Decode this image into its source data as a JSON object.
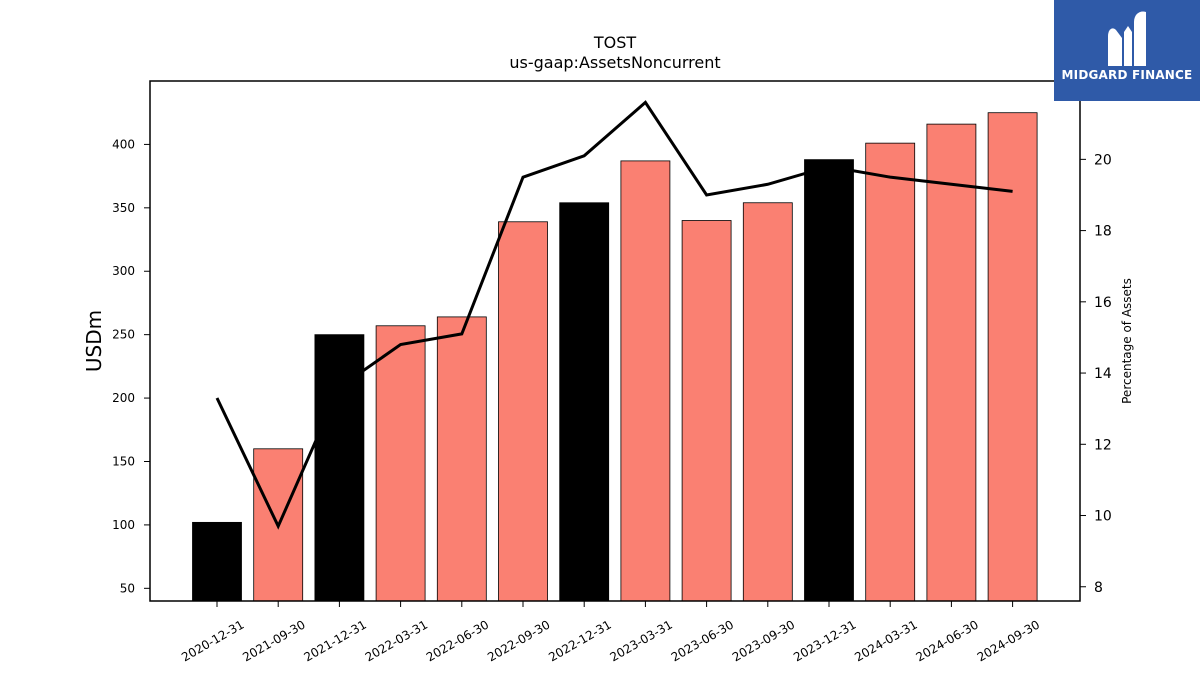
{
  "chart_data": {
    "type": "bar",
    "title": "TOST",
    "subtitle": "us-gaap:AssetsNoncurrent",
    "ylabel": "USDm",
    "y2label": "Percentage of Assets",
    "ylim": [
      40,
      450
    ],
    "y2lim": [
      7.6,
      22.2
    ],
    "yticks": [
      50,
      100,
      150,
      200,
      250,
      300,
      350,
      400
    ],
    "y2ticks": [
      8,
      10,
      12,
      14,
      16,
      18,
      20
    ],
    "categories": [
      "2020-12-31",
      "2021-09-30",
      "2021-12-31",
      "2022-03-31",
      "2022-06-30",
      "2022-09-30",
      "2022-12-31",
      "2023-03-31",
      "2023-06-30",
      "2023-09-30",
      "2023-12-31",
      "2024-03-31",
      "2024-06-30",
      "2024-09-30"
    ],
    "series": [
      {
        "type": "bar",
        "values": [
          102,
          160,
          250,
          257,
          264,
          339,
          354,
          387,
          340,
          354,
          388,
          401,
          416,
          425
        ],
        "colors": [
          "#000000",
          "#fa8072",
          "#000000",
          "#fa8072",
          "#fa8072",
          "#fa8072",
          "#000000",
          "#fa8072",
          "#fa8072",
          "#fa8072",
          "#000000",
          "#fa8072",
          "#fa8072",
          "#fa8072"
        ]
      },
      {
        "type": "line",
        "axis": "right",
        "color": "#000000",
        "values": [
          13.3,
          9.7,
          13.6,
          14.8,
          15.1,
          19.5,
          20.1,
          21.6,
          19.0,
          19.3,
          19.8,
          19.5,
          19.3,
          19.1
        ]
      }
    ],
    "grid": false
  },
  "logo": {
    "text": "MIDGARD FINANCE"
  }
}
